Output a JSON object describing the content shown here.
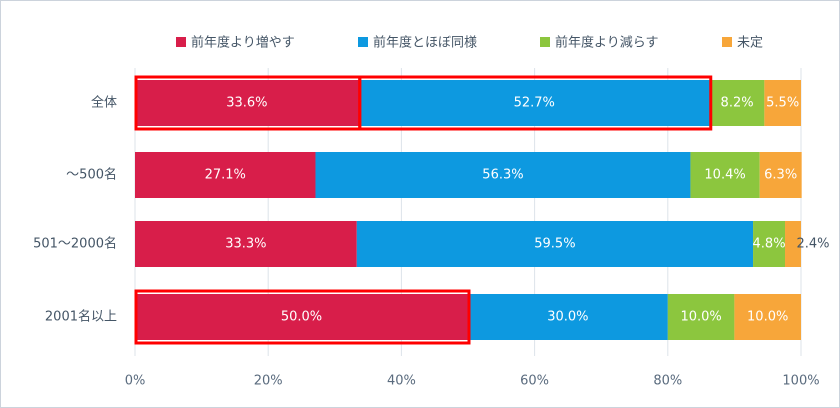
{
  "chart_data": {
    "type": "stacked-bar-horizontal",
    "categories": [
      "全体",
      "～500名",
      "501～2000名",
      "2001名以上"
    ],
    "series": [
      {
        "name": "前年度より増やす",
        "color": "#d81e4a",
        "values": [
          33.6,
          27.1,
          33.3,
          50.0
        ],
        "value_labels": [
          "33.6%",
          "27.1%",
          "33.3%",
          "50.0%"
        ]
      },
      {
        "name": "前年度とほぼ同様",
        "color": "#0d99e0",
        "values": [
          52.7,
          56.3,
          59.5,
          30.0
        ],
        "value_labels": [
          "52.7%",
          "56.3%",
          "59.5%",
          "30.0%"
        ]
      },
      {
        "name": "前年度より減らす",
        "color": "#8cc63e",
        "values": [
          8.2,
          10.4,
          4.8,
          10.0
        ],
        "value_labels": [
          "8.2%",
          "10.4%",
          "4.8%",
          "10.0%"
        ]
      },
      {
        "name": "未定",
        "color": "#f7a63a",
        "values": [
          5.5,
          6.3,
          2.4,
          10.0
        ],
        "value_labels": [
          "5.5%",
          "6.3%",
          "2.4%",
          "10.0%"
        ]
      }
    ],
    "xlim": [
      0,
      100
    ],
    "xticks": [
      {
        "value": 0,
        "label": "0%"
      },
      {
        "value": 20,
        "label": "20%"
      },
      {
        "value": 40,
        "label": "40%"
      },
      {
        "value": 60,
        "label": "60%"
      },
      {
        "value": 80,
        "label": "80%"
      },
      {
        "value": 100,
        "label": "100%"
      }
    ],
    "grid": true,
    "legend": "top"
  }
}
